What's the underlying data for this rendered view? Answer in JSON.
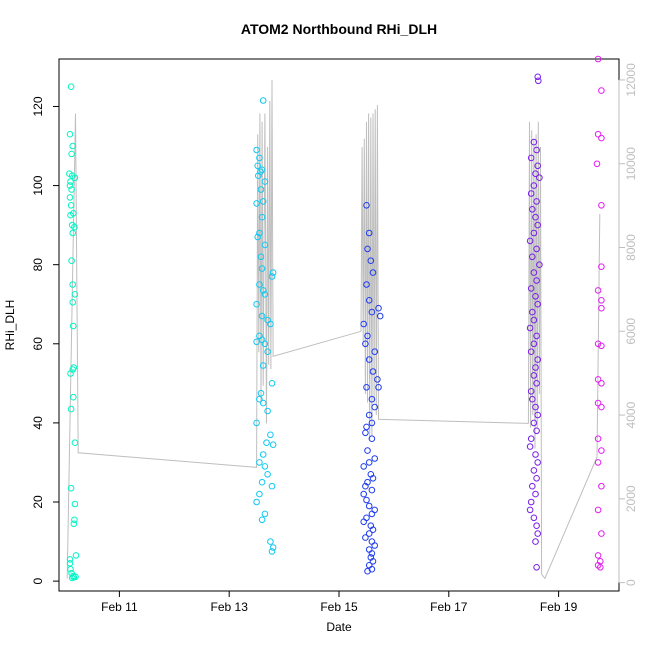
{
  "chart_data": {
    "type": "scatter",
    "title": "ATOM2 Northbound RHi_DLH",
    "xlabel": "Date",
    "ylabel": "RHi_DLH",
    "x_ticks": [
      {
        "x": 11,
        "label": "Feb 11"
      },
      {
        "x": 13,
        "label": "Feb 13"
      },
      {
        "x": 15,
        "label": "Feb 15"
      },
      {
        "x": 17,
        "label": "Feb 17"
      },
      {
        "x": 19,
        "label": "Feb 19"
      }
    ],
    "xlim": [
      9.9,
      20.1
    ],
    "ylim": [
      -2.5,
      132
    ],
    "y_ticks": [
      0,
      20,
      40,
      60,
      80,
      100,
      120
    ],
    "y2lim": [
      -200,
      12500
    ],
    "y2_ticks": [
      0,
      2000,
      4000,
      6000,
      8000,
      10000,
      12000
    ],
    "grid": false,
    "legend": "none",
    "colors": {
      "flight1": "#00f5c4",
      "flight2": "#12c9f0",
      "flight3": "#1f3cf0",
      "flight4": "#7a1ee8",
      "flight5": "#e21ef0",
      "altitude_line": "#bebebe",
      "axis": "#000000",
      "right_axis": "#bebebe"
    },
    "series": [
      {
        "points": [
          [
            10.12,
            125
          ],
          [
            10.1,
            113
          ],
          [
            10.15,
            110
          ],
          [
            10.13,
            108
          ],
          [
            10.09,
            103
          ],
          [
            10.14,
            102.5
          ],
          [
            10.19,
            102
          ],
          [
            10.11,
            101
          ],
          [
            10.1,
            100
          ],
          [
            10.13,
            99
          ],
          [
            10.1,
            97
          ],
          [
            10.12,
            95
          ],
          [
            10.11,
            92.5
          ],
          [
            10.16,
            93
          ],
          [
            10.14,
            90
          ],
          [
            10.18,
            89.5
          ],
          [
            10.15,
            88
          ],
          [
            10.13,
            81
          ],
          [
            10.15,
            75
          ],
          [
            10.19,
            72.5
          ],
          [
            10.15,
            70.5
          ],
          [
            10.16,
            64.5
          ],
          [
            10.17,
            54
          ],
          [
            10.15,
            53.5
          ],
          [
            10.11,
            52.5
          ],
          [
            10.16,
            46.5
          ],
          [
            10.12,
            43.5
          ],
          [
            10.19,
            35
          ],
          [
            10.12,
            23.5
          ],
          [
            10.19,
            19.5
          ],
          [
            10.18,
            15.5
          ],
          [
            10.17,
            14.5
          ],
          [
            10.21,
            6.5
          ],
          [
            10.1,
            5.5
          ],
          [
            10.1,
            4.5
          ],
          [
            10.11,
            3
          ],
          [
            10.13,
            2
          ],
          [
            10.16,
            1.3
          ],
          [
            10.17,
            1
          ],
          [
            10.2,
            1.1
          ],
          [
            10.14,
            0.8
          ]
        ]
      },
      {
        "points": [
          [
            13.62,
            121.5
          ],
          [
            13.5,
            109
          ],
          [
            13.55,
            107
          ],
          [
            13.52,
            105
          ],
          [
            13.57,
            103.5
          ],
          [
            13.6,
            104
          ],
          [
            13.53,
            102.5
          ],
          [
            13.65,
            101
          ],
          [
            13.58,
            99
          ],
          [
            13.62,
            96
          ],
          [
            13.5,
            95.5
          ],
          [
            13.6,
            92
          ],
          [
            13.55,
            88
          ],
          [
            13.52,
            87
          ],
          [
            13.65,
            85
          ],
          [
            13.58,
            82
          ],
          [
            13.6,
            79
          ],
          [
            13.8,
            78
          ],
          [
            13.78,
            77
          ],
          [
            13.55,
            75
          ],
          [
            13.62,
            73.5
          ],
          [
            13.65,
            72.5
          ],
          [
            13.5,
            70
          ],
          [
            13.6,
            67
          ],
          [
            13.7,
            66
          ],
          [
            13.75,
            65
          ],
          [
            13.55,
            62
          ],
          [
            13.6,
            61
          ],
          [
            13.5,
            60.5
          ],
          [
            13.65,
            60
          ],
          [
            13.7,
            58
          ],
          [
            13.62,
            54.5
          ],
          [
            13.78,
            50
          ],
          [
            13.58,
            47.5
          ],
          [
            13.55,
            46
          ],
          [
            13.62,
            45
          ],
          [
            13.7,
            43
          ],
          [
            13.5,
            40
          ],
          [
            13.75,
            37
          ],
          [
            13.68,
            35
          ],
          [
            13.8,
            34.5
          ],
          [
            13.62,
            32
          ],
          [
            13.55,
            30
          ],
          [
            13.65,
            29
          ],
          [
            13.7,
            27
          ],
          [
            13.6,
            25
          ],
          [
            13.78,
            24
          ],
          [
            13.55,
            22
          ],
          [
            13.5,
            20
          ],
          [
            13.65,
            17
          ],
          [
            13.6,
            15.5
          ],
          [
            13.75,
            10
          ],
          [
            13.8,
            8.5
          ],
          [
            13.78,
            7.5
          ]
        ]
      },
      {
        "points": [
          [
            15.5,
            95
          ],
          [
            15.55,
            88
          ],
          [
            15.52,
            84
          ],
          [
            15.58,
            81
          ],
          [
            15.62,
            78
          ],
          [
            15.5,
            75
          ],
          [
            15.55,
            71
          ],
          [
            15.6,
            68
          ],
          [
            15.72,
            69
          ],
          [
            15.75,
            67
          ],
          [
            15.45,
            65
          ],
          [
            15.52,
            62
          ],
          [
            15.48,
            60
          ],
          [
            15.65,
            58
          ],
          [
            15.55,
            56
          ],
          [
            15.62,
            53
          ],
          [
            15.7,
            51
          ],
          [
            15.72,
            49
          ],
          [
            15.5,
            49
          ],
          [
            15.6,
            46
          ],
          [
            15.65,
            44
          ],
          [
            15.55,
            42
          ],
          [
            15.6,
            40
          ],
          [
            15.5,
            39
          ],
          [
            15.48,
            37.5
          ],
          [
            15.6,
            36
          ],
          [
            15.52,
            33
          ],
          [
            15.65,
            31
          ],
          [
            15.55,
            30
          ],
          [
            15.45,
            29
          ],
          [
            15.58,
            27
          ],
          [
            15.62,
            26
          ],
          [
            15.52,
            25
          ],
          [
            15.48,
            24
          ],
          [
            15.6,
            23
          ],
          [
            15.45,
            22
          ],
          [
            15.5,
            20.5
          ],
          [
            15.55,
            19
          ],
          [
            15.65,
            18
          ],
          [
            15.6,
            17
          ],
          [
            15.5,
            16
          ],
          [
            15.45,
            15
          ],
          [
            15.58,
            14
          ],
          [
            15.62,
            13
          ],
          [
            15.55,
            12
          ],
          [
            15.48,
            11
          ],
          [
            15.6,
            10
          ],
          [
            15.65,
            9
          ],
          [
            15.55,
            8
          ],
          [
            15.6,
            7
          ],
          [
            15.58,
            6
          ],
          [
            15.62,
            5
          ],
          [
            15.55,
            4
          ],
          [
            15.6,
            3
          ],
          [
            15.52,
            2.5
          ]
        ]
      },
      {
        "points": [
          [
            18.62,
            127.5
          ],
          [
            18.63,
            126.5
          ],
          [
            18.55,
            111
          ],
          [
            18.6,
            109
          ],
          [
            18.5,
            107
          ],
          [
            18.62,
            105
          ],
          [
            18.58,
            103
          ],
          [
            18.65,
            102
          ],
          [
            18.55,
            100
          ],
          [
            18.5,
            98
          ],
          [
            18.6,
            96
          ],
          [
            18.52,
            94
          ],
          [
            18.58,
            92
          ],
          [
            18.62,
            90
          ],
          [
            18.55,
            88
          ],
          [
            18.48,
            86
          ],
          [
            18.6,
            84
          ],
          [
            18.52,
            82
          ],
          [
            18.65,
            80
          ],
          [
            18.55,
            78
          ],
          [
            18.6,
            76
          ],
          [
            18.5,
            74
          ],
          [
            18.58,
            72
          ],
          [
            18.62,
            70
          ],
          [
            18.52,
            68
          ],
          [
            18.55,
            66
          ],
          [
            18.48,
            64
          ],
          [
            18.6,
            62
          ],
          [
            18.55,
            60
          ],
          [
            18.5,
            58
          ],
          [
            18.62,
            56
          ],
          [
            18.58,
            54
          ],
          [
            18.55,
            52
          ],
          [
            18.6,
            50
          ],
          [
            18.5,
            48
          ],
          [
            18.52,
            46
          ],
          [
            18.58,
            44
          ],
          [
            18.62,
            42
          ],
          [
            18.55,
            40
          ],
          [
            18.6,
            38
          ],
          [
            18.5,
            36
          ],
          [
            18.48,
            34
          ],
          [
            18.58,
            32
          ],
          [
            18.62,
            30
          ],
          [
            18.55,
            28
          ],
          [
            18.6,
            26
          ],
          [
            18.52,
            24
          ],
          [
            18.58,
            22
          ],
          [
            18.5,
            20
          ],
          [
            18.48,
            18
          ],
          [
            18.55,
            16
          ],
          [
            18.6,
            14
          ],
          [
            18.62,
            12
          ],
          [
            18.58,
            10
          ],
          [
            18.6,
            3.5
          ]
        ]
      },
      {
        "points": [
          [
            19.72,
            132
          ],
          [
            19.78,
            124
          ],
          [
            19.72,
            113
          ],
          [
            19.78,
            112
          ],
          [
            19.7,
            105.5
          ],
          [
            19.78,
            95
          ],
          [
            19.78,
            79.5
          ],
          [
            19.72,
            73.5
          ],
          [
            19.78,
            71
          ],
          [
            19.78,
            69
          ],
          [
            19.72,
            60
          ],
          [
            19.78,
            59.5
          ],
          [
            19.72,
            51
          ],
          [
            19.78,
            50
          ],
          [
            19.72,
            45
          ],
          [
            19.78,
            44
          ],
          [
            19.72,
            36
          ],
          [
            19.78,
            33
          ],
          [
            19.72,
            30
          ],
          [
            19.78,
            24
          ],
          [
            19.72,
            18
          ],
          [
            19.78,
            12
          ],
          [
            19.72,
            6.5
          ],
          [
            19.76,
            5
          ],
          [
            19.72,
            4
          ],
          [
            19.76,
            3.5
          ]
        ]
      }
    ],
    "altitude_line": [
      [
        10.05,
        100
      ],
      [
        10.2,
        11200
      ],
      [
        10.25,
        3100
      ],
      [
        13.5,
        2750
      ],
      [
        13.52,
        10700
      ],
      [
        13.54,
        5500
      ],
      [
        13.56,
        11200
      ],
      [
        13.58,
        4300
      ],
      [
        13.6,
        11000
      ],
      [
        13.62,
        4700
      ],
      [
        13.65,
        11200
      ],
      [
        13.68,
        3800
      ],
      [
        13.7,
        10400
      ],
      [
        13.72,
        5200
      ],
      [
        13.74,
        11500
      ],
      [
        13.76,
        5100
      ],
      [
        13.78,
        12000
      ],
      [
        13.8,
        5400
      ],
      [
        15.4,
        6000
      ],
      [
        15.42,
        10400
      ],
      [
        15.44,
        5700
      ],
      [
        15.46,
        10600
      ],
      [
        15.48,
        4500
      ],
      [
        15.5,
        11000
      ],
      [
        15.52,
        4300
      ],
      [
        15.54,
        11200
      ],
      [
        15.56,
        3400
      ],
      [
        15.58,
        11100
      ],
      [
        15.6,
        3500
      ],
      [
        15.62,
        11200
      ],
      [
        15.64,
        4300
      ],
      [
        15.66,
        11300
      ],
      [
        15.68,
        4000
      ],
      [
        15.7,
        11400
      ],
      [
        15.72,
        3900
      ],
      [
        18.45,
        3800
      ],
      [
        18.47,
        11000
      ],
      [
        18.49,
        3700
      ],
      [
        18.51,
        10800
      ],
      [
        18.53,
        4000
      ],
      [
        18.55,
        10600
      ],
      [
        18.57,
        3200
      ],
      [
        18.59,
        10700
      ],
      [
        18.61,
        3700
      ],
      [
        18.63,
        11000
      ],
      [
        18.65,
        4500
      ],
      [
        18.67,
        10400
      ],
      [
        18.69,
        200
      ],
      [
        18.75,
        100
      ],
      [
        19.7,
        3000
      ],
      [
        19.75,
        8800
      ]
    ]
  }
}
